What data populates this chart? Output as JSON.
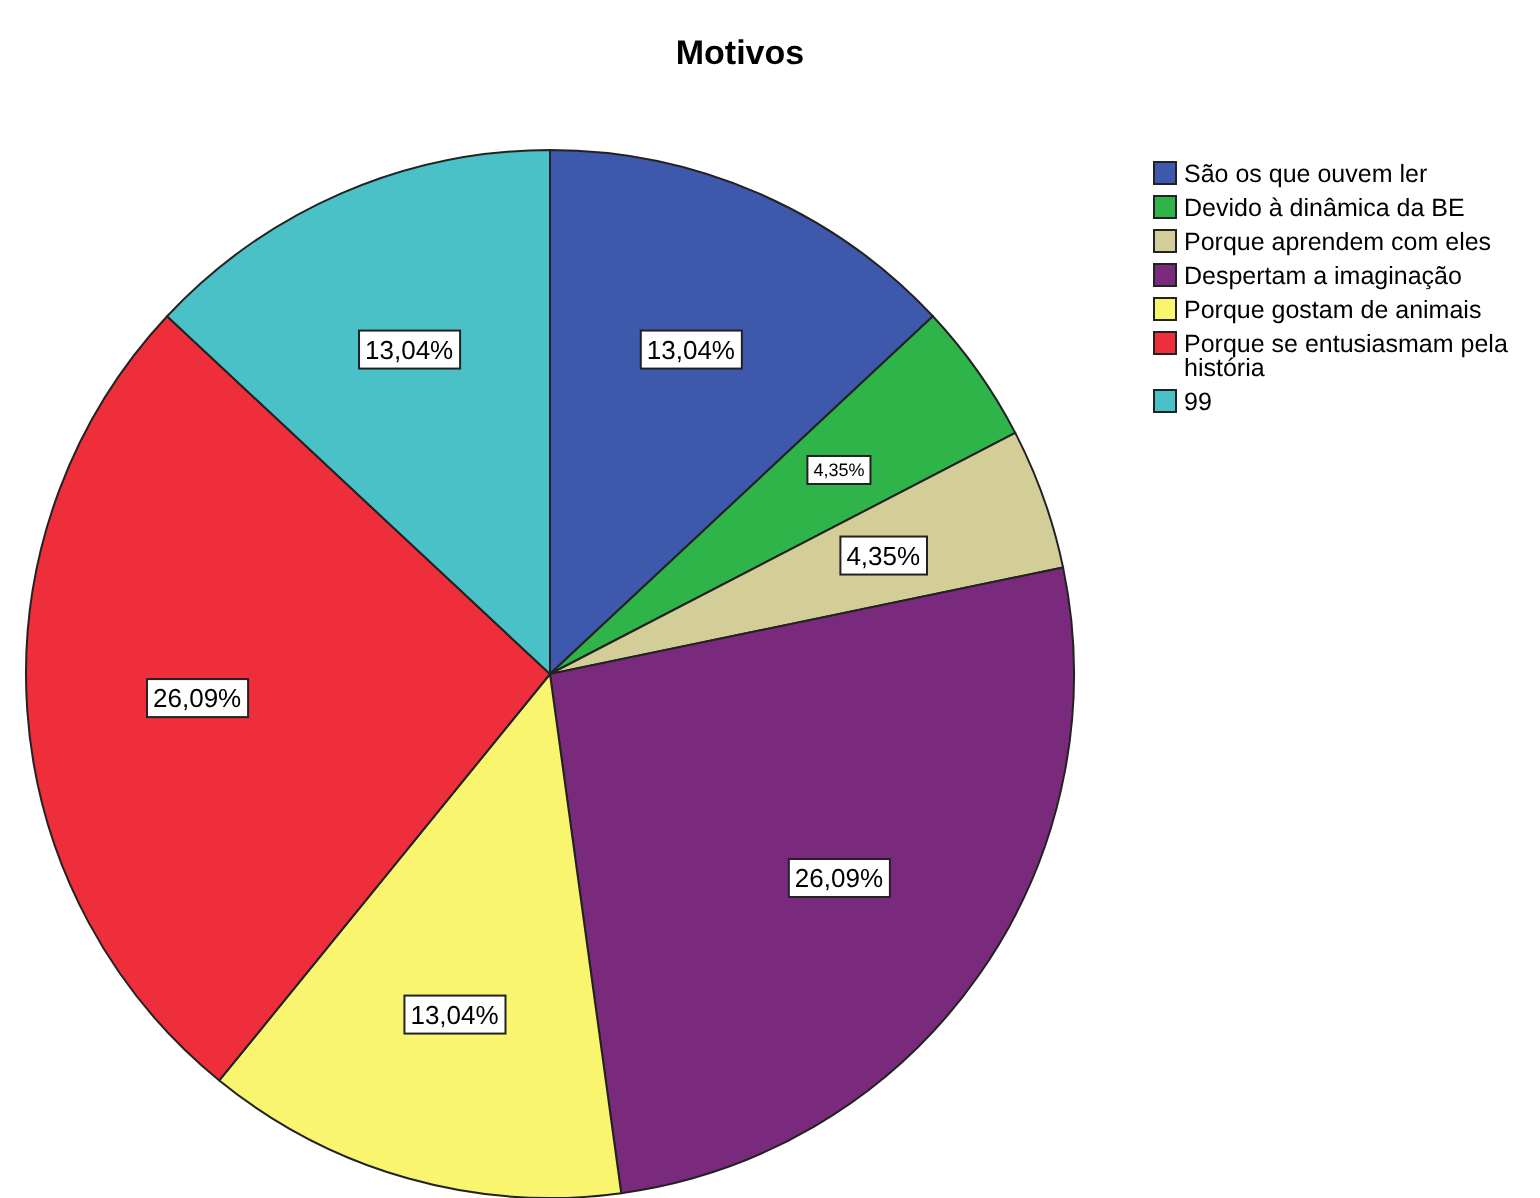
{
  "chart_data": {
    "type": "pie",
    "title": "Motivos",
    "categories": [
      "São os que ouvem ler",
      "Devido à dinâmica da BE",
      "Porque aprendem com eles",
      "Despertam a imaginação",
      "Porque gostam de animais",
      "Porque se entusiasmam pela história",
      "99"
    ],
    "values": [
      13.04,
      4.35,
      4.35,
      26.09,
      13.04,
      26.09,
      13.04
    ],
    "value_labels": [
      "13,04%",
      "4,35%",
      "4,35%",
      "26,09%",
      "13,04%",
      "26,09%",
      "13,04%"
    ],
    "colors": [
      "#3e58ac",
      "#2fb44a",
      "#d3ce97",
      "#7a2a7d",
      "#faf56f",
      "#ee2e3a",
      "#49c1c6"
    ],
    "legend": "top right"
  }
}
